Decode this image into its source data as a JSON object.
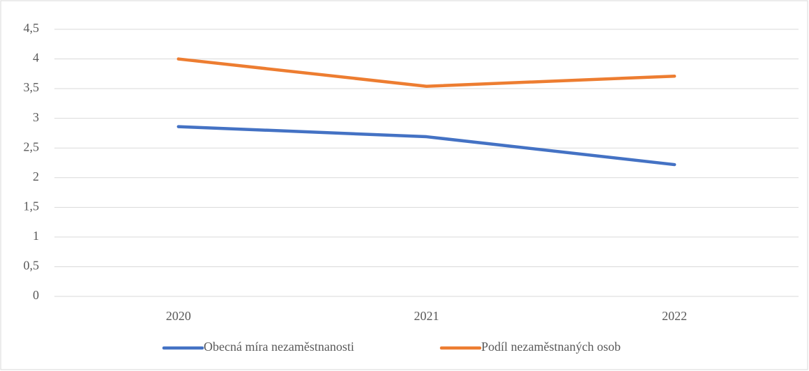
{
  "chart_data": {
    "type": "line",
    "categories": [
      "2020",
      "2021",
      "2022"
    ],
    "series": [
      {
        "name": "Obecná míra nezaměstnanosti",
        "color": "#4472c4",
        "values": [
          2.86,
          2.69,
          2.22
        ]
      },
      {
        "name": "Podíl nezaměstnaných osob",
        "color": "#ed7d31",
        "values": [
          4.0,
          3.54,
          3.71
        ]
      }
    ],
    "ylim": [
      0,
      4.5
    ],
    "yticks": [
      0,
      {
        "value": 0.5,
        "label": "0,5"
      },
      1,
      {
        "value": 1.5,
        "label": "1,5"
      },
      2,
      {
        "value": 2.5,
        "label": "2,5"
      },
      3,
      {
        "value": 3.5,
        "label": "3,5"
      },
      4,
      {
        "value": 4.5,
        "label": "4,5"
      }
    ],
    "grid": true,
    "legend": "bottom"
  }
}
